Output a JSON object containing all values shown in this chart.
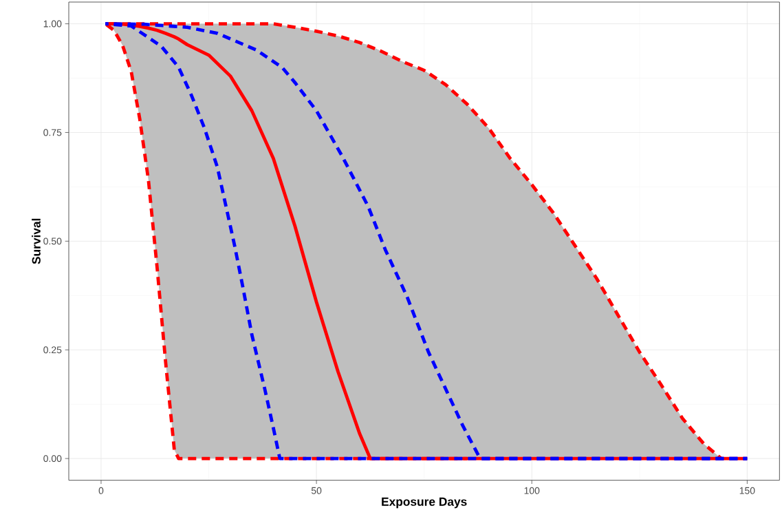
{
  "chart_data": {
    "type": "line",
    "xlabel": "Exposure Days",
    "ylabel": "Survival",
    "xlim": [
      -7.5,
      157.5
    ],
    "ylim": [
      -0.05,
      1.05
    ],
    "xticks": [
      0,
      50,
      100,
      150
    ],
    "yticks": [
      {
        "value": 0,
        "label": "0.00"
      },
      {
        "value": 0.25,
        "label": "0.25"
      },
      {
        "value": 0.5,
        "label": "0.50"
      },
      {
        "value": 0.75,
        "label": "0.75"
      },
      {
        "value": 1,
        "label": "1.00"
      }
    ],
    "grid": true,
    "marker": "none",
    "series": [
      {
        "color": "#ff0000",
        "line_style": "solid",
        "x": [
          1,
          3,
          5,
          7,
          9,
          11,
          13,
          15,
          17,
          18,
          20,
          25,
          30,
          35,
          40,
          45,
          50,
          55,
          60,
          62.5,
          65,
          70,
          75,
          80,
          85,
          90,
          95,
          100,
          105,
          110,
          115,
          120,
          125,
          130,
          135,
          140,
          144,
          150
        ],
        "values": [
          1,
          1,
          0.999,
          0.997,
          0.994,
          0.99,
          0.985,
          0.978,
          0.97,
          0.965,
          0.952,
          0.928,
          0.88,
          0.8,
          0.69,
          0.535,
          0.36,
          0.2,
          0.058,
          0,
          0,
          0,
          0,
          0,
          0,
          0,
          0,
          0,
          0,
          0,
          0,
          0,
          0,
          0,
          0,
          0,
          0,
          0
        ],
        "lower": [
          1,
          0.985,
          0.95,
          0.89,
          0.78,
          0.64,
          0.44,
          0.22,
          0.02,
          0,
          0,
          0,
          0,
          0,
          0,
          0,
          0,
          0,
          0,
          0,
          0,
          0,
          0,
          0,
          0,
          0,
          0,
          0,
          0,
          0,
          0,
          0,
          0,
          0,
          0,
          0,
          0,
          0
        ],
        "upper": [
          1,
          1,
          1,
          1,
          1,
          1,
          1,
          1,
          1,
          1,
          1,
          1,
          1,
          1,
          1,
          0.992,
          0.983,
          0.972,
          0.957,
          0.95,
          0.937,
          0.913,
          0.893,
          0.86,
          0.815,
          0.76,
          0.69,
          0.63,
          0.565,
          0.49,
          0.415,
          0.33,
          0.245,
          0.17,
          0.092,
          0.033,
          0,
          0
        ]
      },
      {
        "color": "#ff0000",
        "line_style": "dashed",
        "x": [
          1,
          3,
          5,
          7,
          9,
          11,
          13,
          15,
          17,
          18,
          85
        ],
        "values": [
          1,
          0.985,
          0.95,
          0.89,
          0.78,
          0.64,
          0.44,
          0.22,
          0.02,
          0,
          0
        ]
      },
      {
        "color": "#ff0000",
        "line_style": "dashed",
        "x": [
          1,
          40,
          45,
          50,
          55,
          60,
          65,
          70,
          75,
          80,
          85,
          90,
          95,
          100,
          105,
          110,
          115,
          120,
          125,
          130,
          135,
          140,
          144
        ],
        "values": [
          1,
          1,
          0.992,
          0.983,
          0.972,
          0.957,
          0.937,
          0.913,
          0.893,
          0.86,
          0.815,
          0.76,
          0.69,
          0.63,
          0.565,
          0.49,
          0.415,
          0.33,
          0.245,
          0.17,
          0.092,
          0.033,
          0
        ]
      },
      {
        "color": "#0000ff",
        "line_style": "dashed",
        "x": [
          1,
          7,
          14,
          18,
          21,
          24,
          27,
          29,
          31,
          33,
          35,
          38,
          40,
          41.5,
          150
        ],
        "values": [
          1,
          0.995,
          0.948,
          0.9,
          0.835,
          0.76,
          0.67,
          0.58,
          0.49,
          0.39,
          0.285,
          0.16,
          0.07,
          0,
          0
        ]
      },
      {
        "color": "#0000ff",
        "line_style": "dashed",
        "x": [
          1,
          10,
          20,
          27,
          36,
          42,
          45,
          50,
          56,
          62,
          66,
          71,
          76,
          80,
          84,
          88,
          150
        ],
        "values": [
          1,
          0.999,
          0.992,
          0.978,
          0.94,
          0.9,
          0.865,
          0.8,
          0.695,
          0.58,
          0.48,
          0.373,
          0.245,
          0.16,
          0.075,
          0,
          0
        ]
      }
    ]
  }
}
